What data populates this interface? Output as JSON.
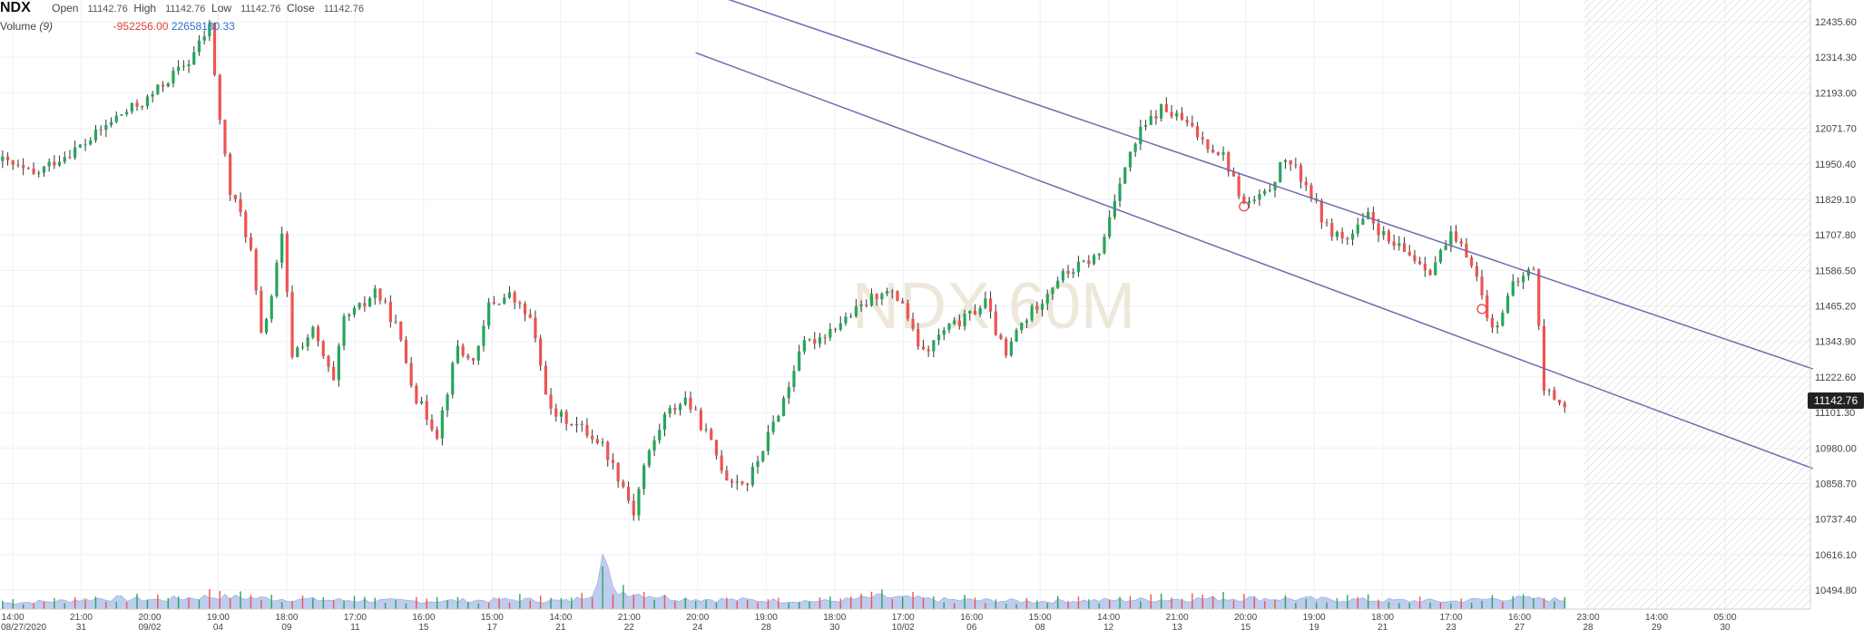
{
  "header": {
    "symbol": "NDX",
    "open_label": "Open",
    "open_value": "11142.76",
    "high_label": "High",
    "high_value": "11142.76",
    "low_label": "Low",
    "low_value": "11142.76",
    "close_label": "Close",
    "close_value": "11142.76"
  },
  "volume_header": {
    "label": "Volume",
    "period": "(9)",
    "change": "-952256.00",
    "total": "22658130.33"
  },
  "watermark": "NDX 60M",
  "last_price": "11142.76",
  "colors": {
    "up": "#26a65b",
    "down": "#ef5350",
    "trendline": "#6f6bb0",
    "volume_fill": "#b7c8ee",
    "grid": "#eef0f3"
  },
  "chart_data": {
    "type": "candlestick",
    "y_axis": {
      "min": 10430,
      "max": 12510,
      "ticks": [
        "12435.60",
        "12314.30",
        "12193.00",
        "12071.70",
        "11950.40",
        "11829.10",
        "11707.80",
        "11586.50",
        "11465.20",
        "11343.90",
        "11222.60",
        "11101.30",
        "10980.00",
        "10858.70",
        "10737.40",
        "10616.10",
        "10494.80"
      ]
    },
    "x_axis": {
      "time_labels": [
        "14:00",
        "21:00",
        "20:00",
        "19:00",
        "18:00",
        "17:00",
        "16:00",
        "15:00",
        "14:00",
        "21:00",
        "20:00",
        "19:00",
        "18:00",
        "17:00",
        "16:00",
        "15:00",
        "14:00",
        "21:00",
        "20:00",
        "19:00",
        "18:00",
        "17:00",
        "16:00",
        "23:00",
        "14:00",
        "05:00"
      ],
      "date_labels": [
        "08/27/2020",
        "31",
        "09/02",
        "04",
        "09",
        "11",
        "15",
        "17",
        "21",
        "22",
        "24",
        "28",
        "30",
        "10/02",
        "06",
        "08",
        "12",
        "13",
        "15",
        "19",
        "21",
        "23",
        "27",
        "28",
        "29",
        "30"
      ]
    },
    "price_path": [
      [
        0,
        11960
      ],
      [
        6,
        11910
      ],
      [
        10,
        11960
      ],
      [
        16,
        12020
      ],
      [
        22,
        12110
      ],
      [
        28,
        12170
      ],
      [
        32,
        12240
      ],
      [
        36,
        12300
      ],
      [
        40,
        12420
      ],
      [
        42,
        12100
      ],
      [
        44,
        11850
      ],
      [
        46,
        11780
      ],
      [
        48,
        11650
      ],
      [
        50,
        11360
      ],
      [
        52,
        11500
      ],
      [
        54,
        11700
      ],
      [
        56,
        11300
      ],
      [
        60,
        11380
      ],
      [
        64,
        11200
      ],
      [
        66,
        11420
      ],
      [
        70,
        11470
      ],
      [
        72,
        11520
      ],
      [
        76,
        11400
      ],
      [
        80,
        11150
      ],
      [
        84,
        11030
      ],
      [
        88,
        11330
      ],
      [
        90,
        11280
      ],
      [
        92,
        11310
      ],
      [
        94,
        11470
      ],
      [
        98,
        11500
      ],
      [
        102,
        11420
      ],
      [
        104,
        11260
      ],
      [
        106,
        11100
      ],
      [
        110,
        11070
      ],
      [
        114,
        11020
      ],
      [
        116,
        10990
      ],
      [
        120,
        10850
      ],
      [
        122,
        10760
      ],
      [
        124,
        10920
      ],
      [
        128,
        11090
      ],
      [
        132,
        11150
      ],
      [
        136,
        11030
      ],
      [
        140,
        10880
      ],
      [
        144,
        10860
      ],
      [
        148,
        11020
      ],
      [
        152,
        11190
      ],
      [
        154,
        11320
      ],
      [
        158,
        11360
      ],
      [
        162,
        11410
      ],
      [
        166,
        11460
      ],
      [
        170,
        11520
      ],
      [
        174,
        11480
      ],
      [
        176,
        11370
      ],
      [
        178,
        11300
      ],
      [
        182,
        11380
      ],
      [
        186,
        11420
      ],
      [
        190,
        11480
      ],
      [
        192,
        11380
      ],
      [
        194,
        11290
      ],
      [
        196,
        11380
      ],
      [
        200,
        11470
      ],
      [
        204,
        11560
      ],
      [
        208,
        11600
      ],
      [
        212,
        11640
      ],
      [
        216,
        11900
      ],
      [
        220,
        12060
      ],
      [
        224,
        12140
      ],
      [
        228,
        12100
      ],
      [
        232,
        12030
      ],
      [
        236,
        11980
      ],
      [
        240,
        11810
      ],
      [
        244,
        11840
      ],
      [
        248,
        11970
      ],
      [
        252,
        11880
      ],
      [
        256,
        11730
      ],
      [
        260,
        11690
      ],
      [
        264,
        11770
      ],
      [
        268,
        11680
      ],
      [
        272,
        11640
      ],
      [
        276,
        11590
      ],
      [
        280,
        11700
      ],
      [
        284,
        11620
      ],
      [
        288,
        11380
      ],
      [
        292,
        11530
      ],
      [
        296,
        11600
      ],
      [
        298,
        11180
      ],
      [
        302,
        11130
      ]
    ],
    "volume_path": [
      [
        0,
        8
      ],
      [
        10,
        10
      ],
      [
        20,
        14
      ],
      [
        30,
        12
      ],
      [
        40,
        16
      ],
      [
        60,
        12
      ],
      [
        80,
        10
      ],
      [
        100,
        12
      ],
      [
        110,
        10
      ],
      [
        114,
        22
      ],
      [
        116,
        70
      ],
      [
        118,
        24
      ],
      [
        130,
        14
      ],
      [
        140,
        12
      ],
      [
        160,
        10
      ],
      [
        170,
        16
      ],
      [
        180,
        12
      ],
      [
        200,
        10
      ],
      [
        220,
        12
      ],
      [
        240,
        14
      ],
      [
        260,
        12
      ],
      [
        280,
        10
      ],
      [
        290,
        14
      ],
      [
        302,
        12
      ]
    ],
    "trendlines": [
      {
        "from": [
          134,
          12550
        ],
        "to": [
          350,
          11250
        ]
      },
      {
        "from": [
          134,
          12330
        ],
        "to": [
          350,
          10910
        ]
      }
    ],
    "markers": [
      [
        240,
        11805
      ],
      [
        286,
        11455
      ]
    ],
    "n_bars": 303,
    "n_total_slots": 350
  }
}
